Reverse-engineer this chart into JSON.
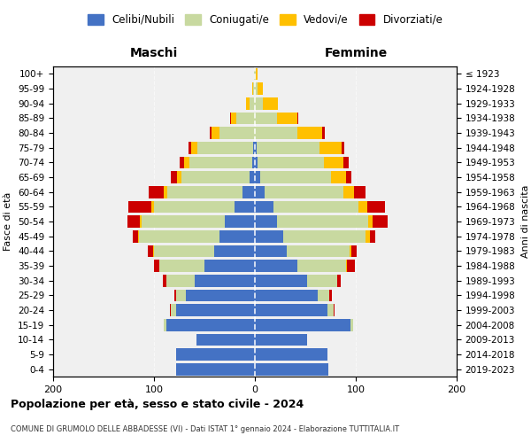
{
  "age_groups": [
    "0-4",
    "5-9",
    "10-14",
    "15-19",
    "20-24",
    "25-29",
    "30-34",
    "35-39",
    "40-44",
    "45-49",
    "50-54",
    "55-59",
    "60-64",
    "65-69",
    "70-74",
    "75-79",
    "80-84",
    "85-89",
    "90-94",
    "95-99",
    "100+"
  ],
  "birth_years": [
    "2019-2023",
    "2014-2018",
    "2009-2013",
    "2004-2008",
    "1999-2003",
    "1994-1998",
    "1989-1993",
    "1984-1988",
    "1979-1983",
    "1974-1978",
    "1969-1973",
    "1964-1968",
    "1959-1963",
    "1954-1958",
    "1949-1953",
    "1944-1948",
    "1939-1943",
    "1934-1938",
    "1929-1933",
    "1924-1928",
    "≤ 1923"
  ],
  "maschi": {
    "celibi": [
      78,
      78,
      58,
      88,
      78,
      68,
      60,
      50,
      40,
      35,
      30,
      20,
      12,
      5,
      3,
      2,
      0,
      0,
      0,
      0,
      0
    ],
    "coniugati": [
      0,
      0,
      0,
      2,
      5,
      10,
      28,
      45,
      60,
      80,
      82,
      80,
      75,
      68,
      62,
      55,
      35,
      18,
      5,
      2,
      1
    ],
    "vedovi": [
      0,
      0,
      0,
      0,
      0,
      0,
      0,
      0,
      1,
      1,
      2,
      3,
      3,
      4,
      5,
      6,
      8,
      6,
      4,
      1,
      0
    ],
    "divorziati": [
      0,
      0,
      0,
      0,
      1,
      2,
      3,
      5,
      5,
      5,
      12,
      22,
      15,
      6,
      5,
      3,
      2,
      1,
      0,
      0,
      0
    ]
  },
  "femmine": {
    "nubili": [
      73,
      72,
      52,
      95,
      72,
      62,
      52,
      42,
      32,
      28,
      22,
      18,
      10,
      5,
      3,
      2,
      0,
      0,
      0,
      0,
      0
    ],
    "coniugate": [
      0,
      0,
      0,
      2,
      6,
      12,
      30,
      48,
      62,
      82,
      90,
      85,
      78,
      70,
      65,
      62,
      42,
      22,
      8,
      3,
      1
    ],
    "vedove": [
      0,
      0,
      0,
      0,
      0,
      0,
      0,
      1,
      2,
      4,
      5,
      8,
      10,
      15,
      20,
      22,
      25,
      20,
      15,
      5,
      2
    ],
    "divorziate": [
      0,
      0,
      0,
      0,
      1,
      2,
      3,
      8,
      5,
      5,
      15,
      18,
      12,
      6,
      5,
      3,
      2,
      1,
      0,
      0,
      0
    ]
  },
  "colors": {
    "celibi": "#4472c4",
    "coniugati": "#c8d9a0",
    "vedovi": "#ffc000",
    "divorziati": "#cc0000"
  },
  "xlim": 200,
  "title": "Popolazione per età, sesso e stato civile - 2024",
  "subtitle": "COMUNE DI GRUMOLO DELLE ABBADESSE (VI) - Dati ISTAT 1° gennaio 2024 - Elaborazione TUTTITALIA.IT",
  "ylabel": "Fasce di età",
  "ylabel_right": "Anni di nascita",
  "legend_labels": [
    "Celibi/Nubili",
    "Coniugati/e",
    "Vedovi/e",
    "Divorziati/e"
  ]
}
